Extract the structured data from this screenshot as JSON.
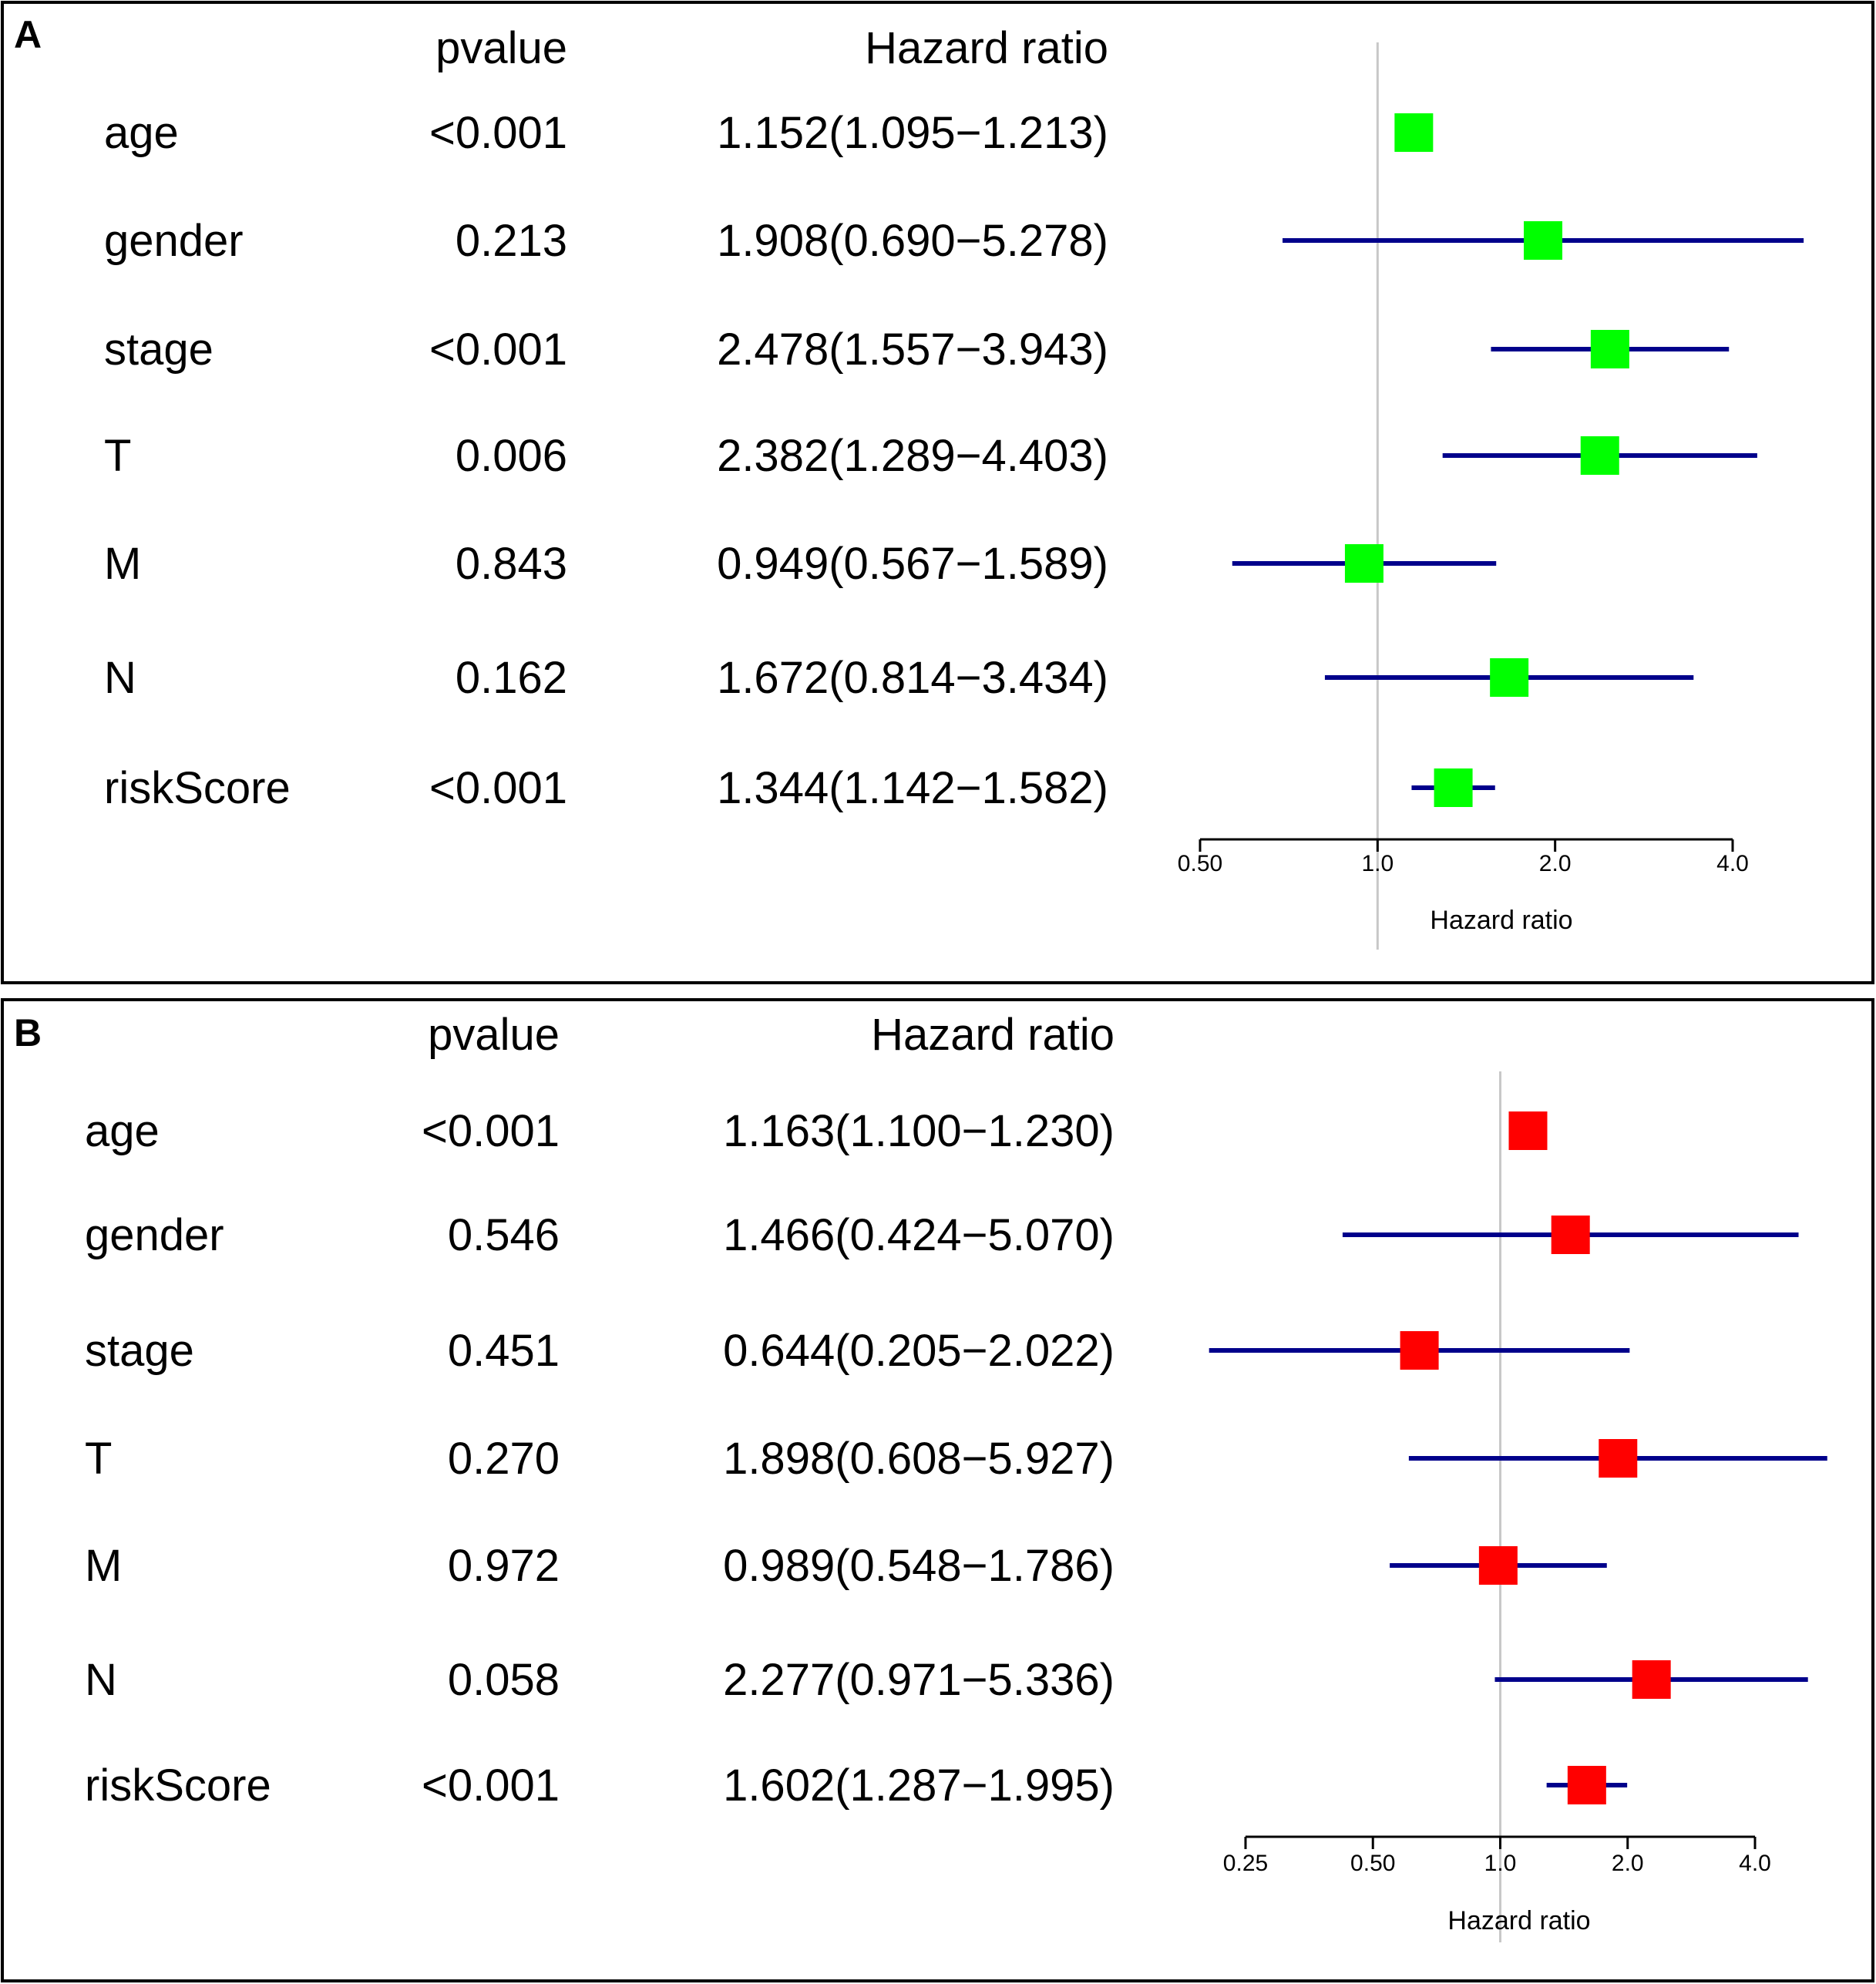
{
  "figure": {
    "marker_colors": {
      "A": "#00ff00",
      "B": "#ff0000"
    },
    "ci_line_color": "#00008b",
    "reference_line_color": "#c8c8c8"
  },
  "chart_data": [
    {
      "panel": "A",
      "type": "forest",
      "label": "A",
      "col_headers": {
        "pvalue": "pvalue",
        "hazard_ratio": "Hazard ratio"
      },
      "xlabel": "Hazard ratio",
      "x_scale": "log2",
      "xlim": [
        0.5,
        4.0
      ],
      "ticks": [
        0.5,
        1.0,
        2.0,
        4.0
      ],
      "tick_labels": [
        "0.50",
        "1.0",
        "2.0",
        "4.0"
      ],
      "reference_value": 1.0,
      "rows": [
        {
          "name": "age",
          "pvalue": "<0.001",
          "hr_text": "1.152(1.095−1.213)",
          "hr": 1.152,
          "lower": 1.095,
          "upper": 1.213
        },
        {
          "name": "gender",
          "pvalue": "0.213",
          "hr_text": "1.908(0.690−5.278)",
          "hr": 1.908,
          "lower": 0.69,
          "upper": 5.278
        },
        {
          "name": "stage",
          "pvalue": "<0.001",
          "hr_text": "2.478(1.557−3.943)",
          "hr": 2.478,
          "lower": 1.557,
          "upper": 3.943
        },
        {
          "name": "T",
          "pvalue": "0.006",
          "hr_text": "2.382(1.289−4.403)",
          "hr": 2.382,
          "lower": 1.289,
          "upper": 4.403
        },
        {
          "name": "M",
          "pvalue": "0.843",
          "hr_text": "0.949(0.567−1.589)",
          "hr": 0.949,
          "lower": 0.567,
          "upper": 1.589
        },
        {
          "name": "N",
          "pvalue": "0.162",
          "hr_text": "1.672(0.814−3.434)",
          "hr": 1.672,
          "lower": 0.814,
          "upper": 3.434
        },
        {
          "name": "riskScore",
          "pvalue": "<0.001",
          "hr_text": "1.344(1.142−1.582)",
          "hr": 1.344,
          "lower": 1.142,
          "upper": 1.582
        }
      ]
    },
    {
      "panel": "B",
      "type": "forest",
      "label": "B",
      "col_headers": {
        "pvalue": "pvalue",
        "hazard_ratio": "Hazard ratio"
      },
      "xlabel": "Hazard ratio",
      "x_scale": "log2",
      "xlim": [
        0.25,
        4.0
      ],
      "ticks": [
        0.25,
        0.5,
        1.0,
        2.0,
        4.0
      ],
      "tick_labels": [
        "0.25",
        "0.50",
        "1.0",
        "2.0",
        "4.0"
      ],
      "reference_value": 1.0,
      "rows": [
        {
          "name": "age",
          "pvalue": "<0.001",
          "hr_text": "1.163(1.100−1.230)",
          "hr": 1.163,
          "lower": 1.1,
          "upper": 1.23
        },
        {
          "name": "gender",
          "pvalue": "0.546",
          "hr_text": "1.466(0.424−5.070)",
          "hr": 1.466,
          "lower": 0.424,
          "upper": 5.07
        },
        {
          "name": "stage",
          "pvalue": "0.451",
          "hr_text": "0.644(0.205−2.022)",
          "hr": 0.644,
          "lower": 0.205,
          "upper": 2.022
        },
        {
          "name": "T",
          "pvalue": "0.270",
          "hr_text": "1.898(0.608−5.927)",
          "hr": 1.898,
          "lower": 0.608,
          "upper": 5.927
        },
        {
          "name": "M",
          "pvalue": "0.972",
          "hr_text": "0.989(0.548−1.786)",
          "hr": 0.989,
          "lower": 0.548,
          "upper": 1.786
        },
        {
          "name": "N",
          "pvalue": "0.058",
          "hr_text": "2.277(0.971−5.336)",
          "hr": 2.277,
          "lower": 0.971,
          "upper": 5.336
        },
        {
          "name": "riskScore",
          "pvalue": "<0.001",
          "hr_text": "1.602(1.287−1.995)",
          "hr": 1.602,
          "lower": 1.287,
          "upper": 1.995
        }
      ]
    }
  ]
}
